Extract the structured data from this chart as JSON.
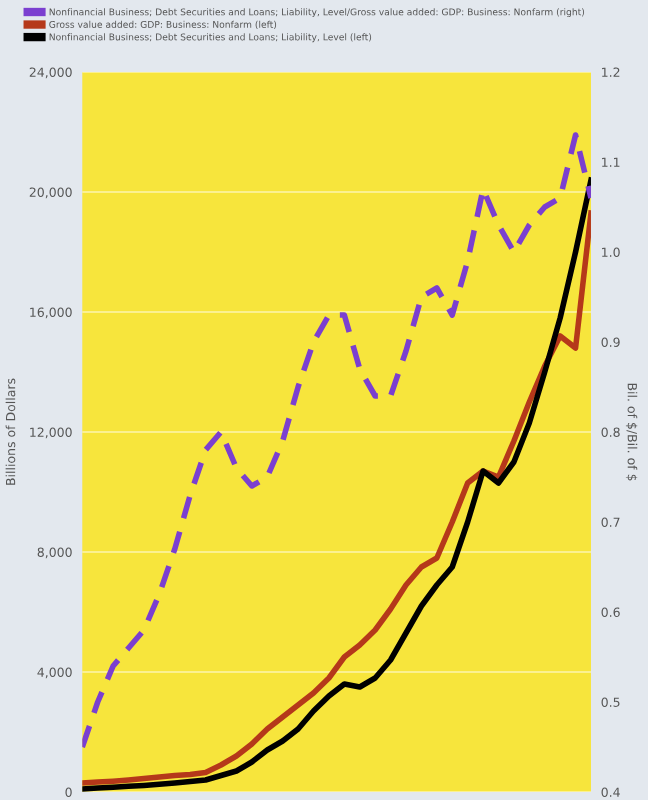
{
  "chart_data": {
    "type": "line",
    "ylabel": "Billions of Dollars",
    "y2label": "Bil. of $/Bil. of $",
    "categories": [
      null,
      null,
      null,
      null,
      null,
      null,
      null,
      null,
      null,
      null,
      null,
      null,
      null,
      null,
      null,
      null,
      null,
      null,
      null,
      null,
      null,
      null,
      null,
      null,
      null,
      null,
      null,
      null,
      null,
      null,
      null,
      null,
      null,
      null
    ],
    "ylim": [
      0,
      24000
    ],
    "yticks": [
      0,
      {
        "value": 4000,
        "label": "4,000"
      },
      {
        "value": 8000,
        "label": "8,000"
      },
      {
        "value": 12000,
        "label": "12,000"
      },
      {
        "value": 16000,
        "label": "16,000"
      },
      {
        "value": 20000,
        "label": "20,000"
      },
      {
        "value": 24000,
        "label": "24,000"
      }
    ],
    "y2lim": [
      0.4,
      1.2
    ],
    "y2ticks": [
      0.4,
      0.5,
      0.6,
      0.7,
      0.8,
      0.9,
      {
        "value": 1,
        "label": "1.0"
      },
      1.1,
      1.2
    ],
    "tick_labels": "y",
    "grid": "y",
    "legend": "top",
    "series": [
      {
        "name": "Nonfinancial Business; Debt Securities and Loans; Liability, Level/Gross value added: GDP: Business: Nonfarm (right)",
        "color": "#7b3fd0",
        "axis": "y2",
        "line_style": "dashed",
        "values": [
          0.45,
          0.5,
          0.54,
          0.56,
          0.58,
          0.62,
          0.67,
          0.73,
          0.78,
          0.8,
          0.76,
          0.74,
          0.75,
          0.79,
          0.85,
          0.9,
          0.93,
          0.93,
          0.87,
          0.84,
          0.84,
          0.89,
          0.95,
          0.96,
          0.93,
          0.99,
          1.07,
          1.03,
          1.0,
          1.03,
          1.05,
          1.06,
          1.13,
          1.06
        ]
      },
      {
        "name": "Gross value added: GDP: Business: Nonfarm (left)",
        "color": "#b5381a",
        "line_style": "solid",
        "values": [
          300,
          330,
          360,
          400,
          450,
          500,
          550,
          580,
          650,
          900,
          1200,
          1600,
          2100,
          2500,
          2900,
          3300,
          3800,
          4500,
          4900,
          5400,
          6100,
          6900,
          7500,
          7800,
          9000,
          10300,
          10700,
          10500,
          11700,
          13000,
          14200,
          15200,
          14800,
          19300
        ]
      },
      {
        "name": "Nonfinancial Business; Debt Securities and Loans; Liability, Level (left)",
        "color": "#000000",
        "line_style": "solid",
        "values": [
          100,
          130,
          160,
          190,
          220,
          260,
          300,
          350,
          400,
          550,
          700,
          1000,
          1400,
          1700,
          2100,
          2700,
          3200,
          3600,
          3500,
          3800,
          4400,
          5300,
          6200,
          6900,
          7500,
          9000,
          10700,
          10300,
          11000,
          12300,
          14000,
          15800,
          18000,
          20400
        ]
      }
    ]
  }
}
